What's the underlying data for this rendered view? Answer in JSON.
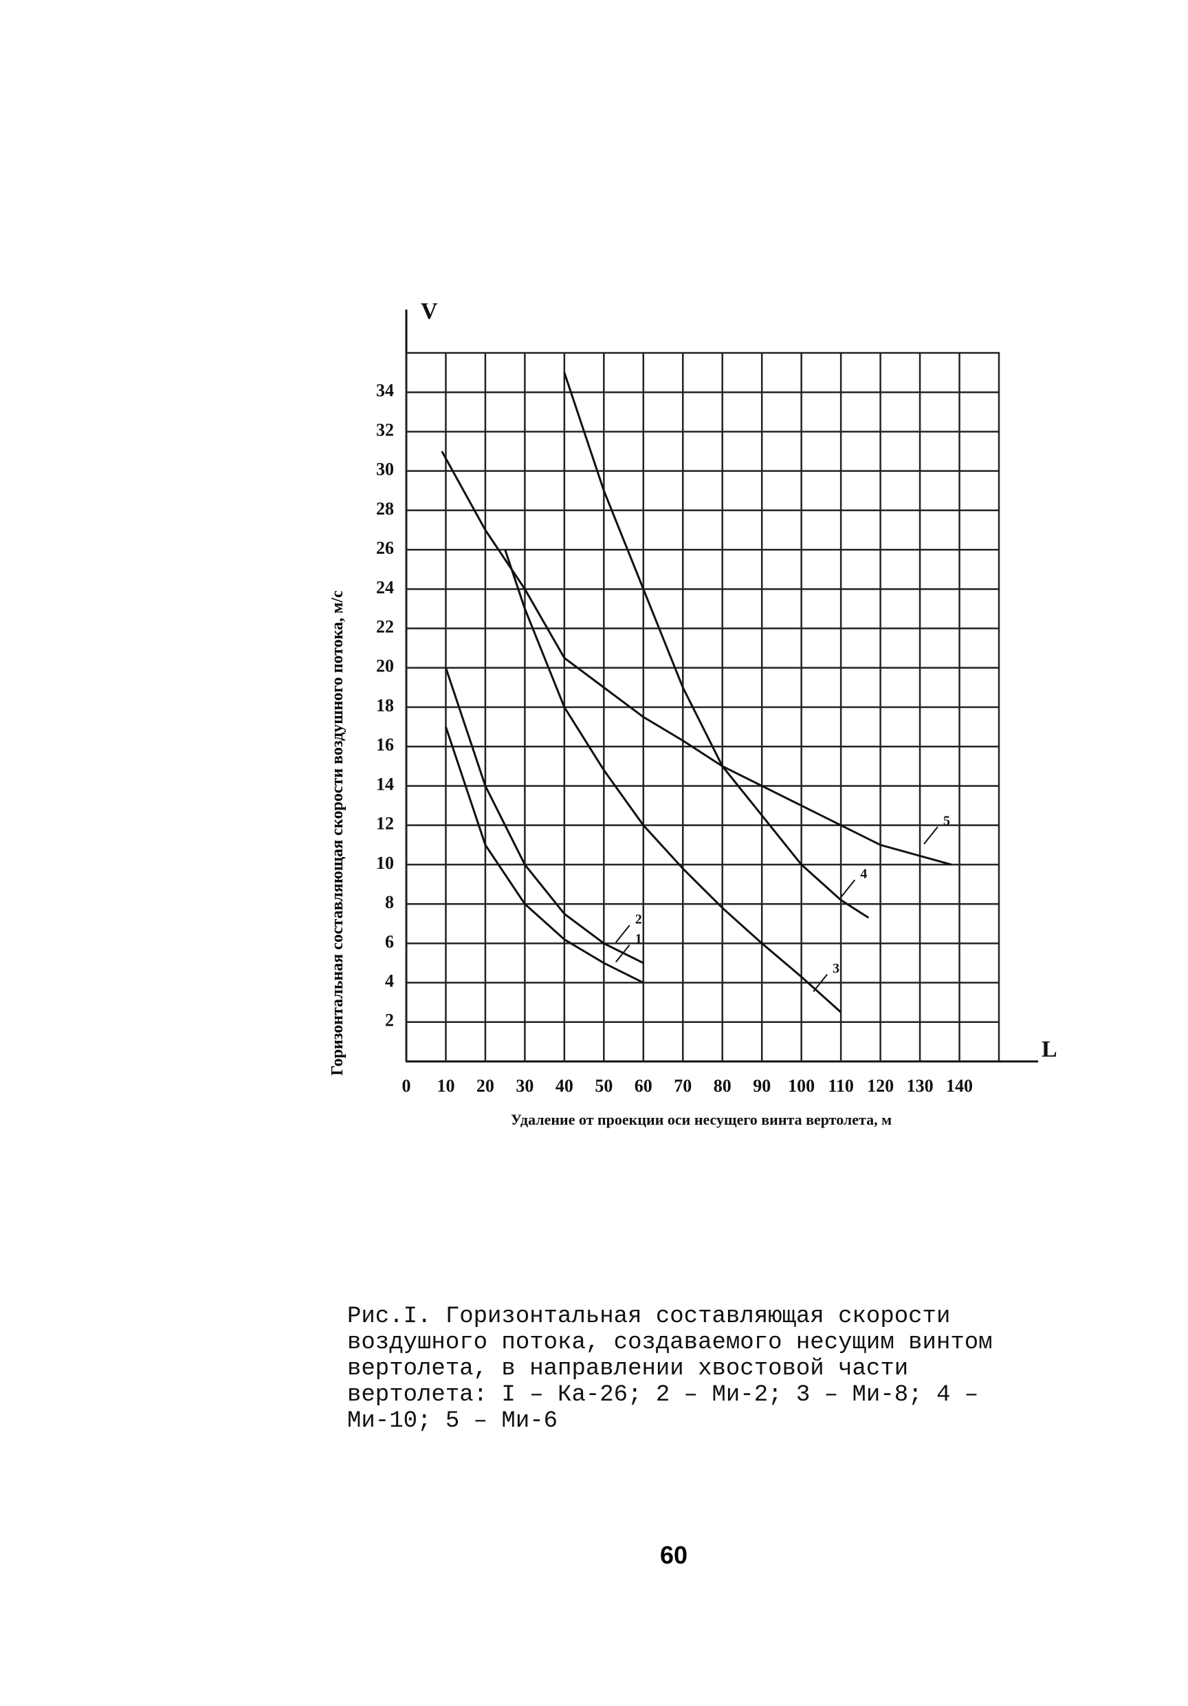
{
  "chart_data": {
    "type": "line",
    "y_label": "Горизонтальная составляющая скорости воздушного потока, м/с",
    "x_label": "Удаление от проекции оси несущего винта вертолета, м",
    "y_symbol": "V",
    "x_symbol": "L",
    "xlim": [
      0,
      150
    ],
    "ylim": [
      0,
      36
    ],
    "xticks": [
      0,
      10,
      20,
      30,
      40,
      50,
      60,
      70,
      80,
      90,
      100,
      110,
      120,
      130,
      140
    ],
    "yticks": [
      2,
      4,
      6,
      8,
      10,
      12,
      14,
      16,
      18,
      20,
      22,
      24,
      26,
      28,
      30,
      32,
      34
    ],
    "grid": true,
    "series": [
      {
        "name": "1",
        "color": "#111111",
        "x": [
          10,
          20,
          30,
          40,
          50,
          60
        ],
        "values": [
          17,
          11,
          8,
          6.2,
          5,
          4
        ]
      },
      {
        "name": "2",
        "color": "#111111",
        "x": [
          10,
          20,
          30,
          40,
          50,
          60
        ],
        "values": [
          20,
          14,
          10,
          7.5,
          6,
          5
        ]
      },
      {
        "name": "3",
        "color": "#111111",
        "x": [
          25,
          30,
          40,
          50,
          60,
          70,
          80,
          90,
          100,
          110
        ],
        "values": [
          26,
          23,
          18,
          14.8,
          12,
          9.8,
          7.8,
          6,
          4.3,
          2.5
        ]
      },
      {
        "name": "4",
        "color": "#111111",
        "x": [
          40,
          50,
          60,
          70,
          80,
          90,
          100,
          110,
          117
        ],
        "values": [
          35,
          29,
          24,
          19,
          15,
          12.5,
          10,
          8.2,
          7.3
        ]
      },
      {
        "name": "5",
        "color": "#111111",
        "x": [
          9,
          20,
          30,
          40,
          50,
          60,
          70,
          80,
          90,
          100,
          110,
          120,
          138
        ],
        "values": [
          31,
          27,
          24,
          20.5,
          19,
          17.5,
          16.3,
          15,
          14,
          13,
          12,
          11,
          10
        ]
      }
    ]
  },
  "caption": "Рис.I. Горизонтальная составляющая скорости воздушного потока, создаваемого несущим винтом вертолета, в направлении хвостовой части вертолета: I – Ка-26; 2 – Ми-2; 3 – Ми-8; 4 – Ми-10; 5 – Ми-6",
  "page_number": "60"
}
